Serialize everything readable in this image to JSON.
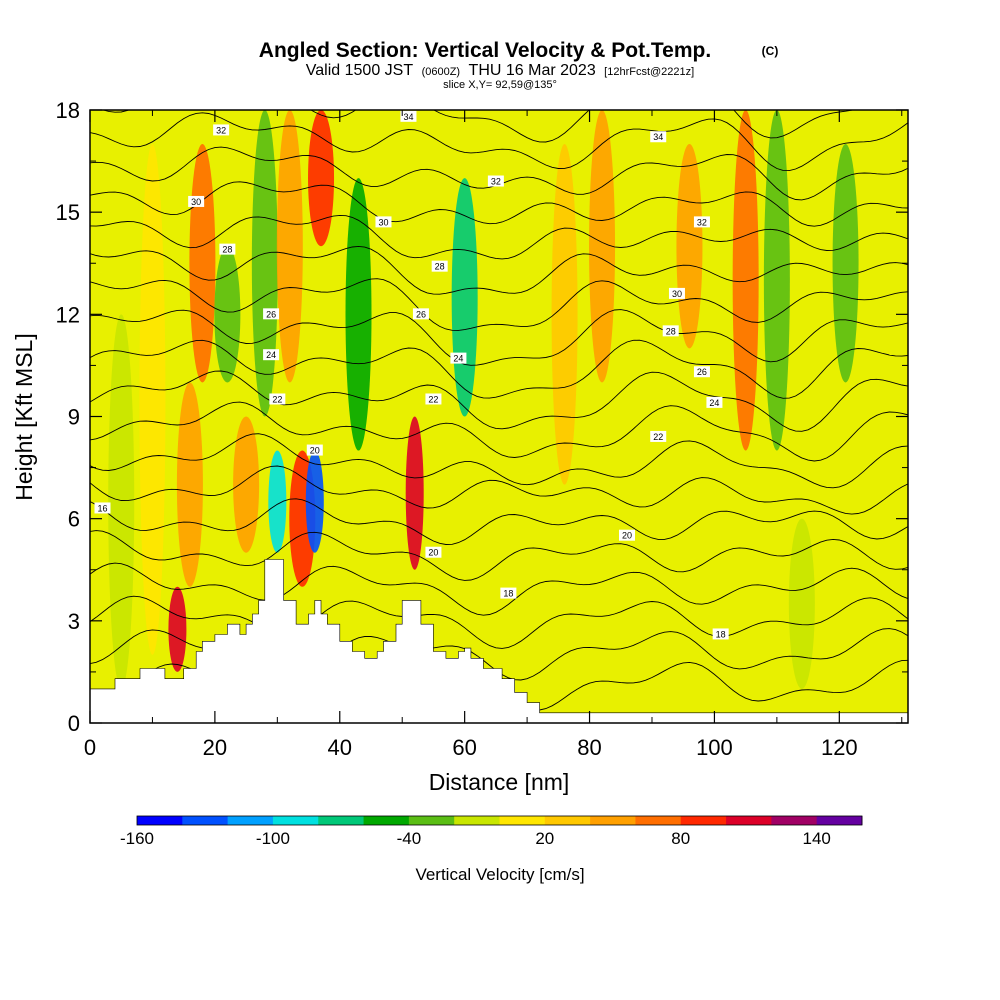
{
  "chart_data": {
    "type": "heatmap",
    "title": "Angled Section: Vertical Velocity & Pot.Temp.",
    "title_mark": "(C)",
    "subtitle": {
      "main_a": "Valid 1500 JST",
      "utc": "(0600Z)",
      "main_b": "THU 16 Mar 2023",
      "fcst": "[12hrFcst@2221z]"
    },
    "slice_note": "slice X,Y= 92,59@135°",
    "xlabel": "Distance [nm]",
    "ylabel": "Height [Kft MSL]",
    "xlim": [
      0,
      131
    ],
    "ylim": [
      0,
      18
    ],
    "x_ticks": [
      0,
      20,
      40,
      60,
      80,
      100,
      120
    ],
    "y_ticks": [
      0,
      3,
      6,
      9,
      12,
      15,
      18
    ],
    "x_tick_labels": [
      "0",
      "20",
      "40",
      "60",
      "80",
      "100",
      "120"
    ],
    "y_tick_labels": [
      "0",
      "3",
      "6",
      "9",
      "12",
      "15",
      "18"
    ],
    "colorbar": {
      "title": "Vertical Velocity [cm/s]",
      "min": -160,
      "max": 160,
      "step": 20,
      "labeled_ticks": [
        -160,
        -100,
        -40,
        20,
        80,
        140
      ],
      "labels": [
        "-160",
        "-100",
        "-40",
        "20",
        "80",
        "140"
      ],
      "colors": [
        "#0000ff",
        "#0050ff",
        "#00a0ff",
        "#00e0e0",
        "#00c878",
        "#00a800",
        "#5abe14",
        "#c8e600",
        "#ffe600",
        "#ffc800",
        "#ffa000",
        "#ff6e00",
        "#ff2800",
        "#dc0028",
        "#a00064",
        "#6400a0"
      ]
    },
    "vertical_velocity_cells": [
      {
        "x": 5,
        "y": [
          1,
          12
        ],
        "w": -20
      },
      {
        "x": 10,
        "y": [
          2,
          17
        ],
        "w": 10
      },
      {
        "x": 14,
        "y": [
          1.5,
          4
        ],
        "w": 110
      },
      {
        "x": 16,
        "y": [
          4,
          10
        ],
        "w": 40
      },
      {
        "x": 18,
        "y": [
          10,
          17
        ],
        "w": 60
      },
      {
        "x": 22,
        "y": [
          10,
          14
        ],
        "w": -40
      },
      {
        "x": 25,
        "y": [
          5,
          9
        ],
        "w": 40
      },
      {
        "x": 28,
        "y": [
          9,
          18
        ],
        "w": -30
      },
      {
        "x": 30,
        "y": [
          5,
          8
        ],
        "w": -100
      },
      {
        "x": 32,
        "y": [
          10,
          18
        ],
        "w": 40
      },
      {
        "x": 34,
        "y": [
          4,
          8
        ],
        "w": 80
      },
      {
        "x": 36,
        "y": [
          5,
          8
        ],
        "w": -140
      },
      {
        "x": 37,
        "y": [
          14,
          18
        ],
        "w": 80
      },
      {
        "x": 43,
        "y": [
          8,
          16
        ],
        "w": -60
      },
      {
        "x": 52,
        "y": [
          4.5,
          9
        ],
        "w": 100
      },
      {
        "x": 60,
        "y": [
          9,
          16
        ],
        "w": -80
      },
      {
        "x": 76,
        "y": [
          7,
          17
        ],
        "w": 30
      },
      {
        "x": 82,
        "y": [
          10,
          18
        ],
        "w": 40
      },
      {
        "x": 96,
        "y": [
          11,
          17
        ],
        "w": 40
      },
      {
        "x": 105,
        "y": [
          8,
          18
        ],
        "w": 60
      },
      {
        "x": 110,
        "y": [
          8,
          18
        ],
        "w": -30
      },
      {
        "x": 114,
        "y": [
          1,
          6
        ],
        "w": -20
      },
      {
        "x": 121,
        "y": [
          10,
          17
        ],
        "w": -40
      }
    ],
    "theta_contour_levels": [
      16,
      17,
      18,
      19,
      20,
      21,
      22,
      23,
      24,
      25,
      26,
      27,
      28,
      29,
      30,
      31,
      32,
      33,
      34
    ],
    "theta_contour_labels": [
      {
        "text": "16",
        "x": 2,
        "y": 6.3
      },
      {
        "text": "18",
        "x": 67,
        "y": 3.8
      },
      {
        "text": "18",
        "x": 101,
        "y": 2.6
      },
      {
        "text": "20",
        "x": 36,
        "y": 8.0
      },
      {
        "text": "20",
        "x": 55,
        "y": 5.0
      },
      {
        "text": "20",
        "x": 86,
        "y": 5.5
      },
      {
        "text": "22",
        "x": 30,
        "y": 9.5
      },
      {
        "text": "22",
        "x": 55,
        "y": 9.5
      },
      {
        "text": "22",
        "x": 91,
        "y": 8.4
      },
      {
        "text": "24",
        "x": 29,
        "y": 10.8
      },
      {
        "text": "24",
        "x": 59,
        "y": 10.7
      },
      {
        "text": "24",
        "x": 100,
        "y": 9.4
      },
      {
        "text": "26",
        "x": 29,
        "y": 12.0
      },
      {
        "text": "26",
        "x": 53,
        "y": 12.0
      },
      {
        "text": "26",
        "x": 98,
        "y": 10.3
      },
      {
        "text": "28",
        "x": 22,
        "y": 13.9
      },
      {
        "text": "28",
        "x": 56,
        "y": 13.4
      },
      {
        "text": "28",
        "x": 93,
        "y": 11.5
      },
      {
        "text": "30",
        "x": 17,
        "y": 15.3
      },
      {
        "text": "30",
        "x": 47,
        "y": 14.7
      },
      {
        "text": "30",
        "x": 94,
        "y": 12.6
      },
      {
        "text": "32",
        "x": 21,
        "y": 17.4
      },
      {
        "text": "32",
        "x": 65,
        "y": 15.9
      },
      {
        "text": "32",
        "x": 98,
        "y": 14.7
      },
      {
        "text": "34",
        "x": 51,
        "y": 17.8
      },
      {
        "text": "34",
        "x": 91,
        "y": 17.2
      }
    ],
    "terrain_steps": [
      [
        0,
        1.0
      ],
      [
        4,
        1.3
      ],
      [
        8,
        1.6
      ],
      [
        12,
        1.3
      ],
      [
        15,
        1.6
      ],
      [
        17,
        2.1
      ],
      [
        18,
        2.4
      ],
      [
        20,
        2.6
      ],
      [
        22,
        2.9
      ],
      [
        24,
        2.6
      ],
      [
        25,
        2.9
      ],
      [
        26,
        3.2
      ],
      [
        27,
        3.6
      ],
      [
        28,
        4.8
      ],
      [
        31,
        3.6
      ],
      [
        33,
        2.9
      ],
      [
        35,
        3.2
      ],
      [
        36,
        3.6
      ],
      [
        37,
        3.2
      ],
      [
        38,
        2.9
      ],
      [
        40,
        2.4
      ],
      [
        42,
        2.1
      ],
      [
        44,
        1.9
      ],
      [
        46,
        2.1
      ],
      [
        47,
        2.4
      ],
      [
        49,
        2.9
      ],
      [
        50,
        3.6
      ],
      [
        53,
        2.9
      ],
      [
        55,
        2.1
      ],
      [
        57,
        1.9
      ],
      [
        59,
        2.1
      ],
      [
        60,
        2.2
      ],
      [
        61,
        1.9
      ],
      [
        63,
        1.6
      ],
      [
        66,
        1.3
      ],
      [
        68,
        0.9
      ],
      [
        70,
        0.6
      ],
      [
        72,
        0.3
      ],
      [
        131,
        0.3
      ]
    ]
  }
}
